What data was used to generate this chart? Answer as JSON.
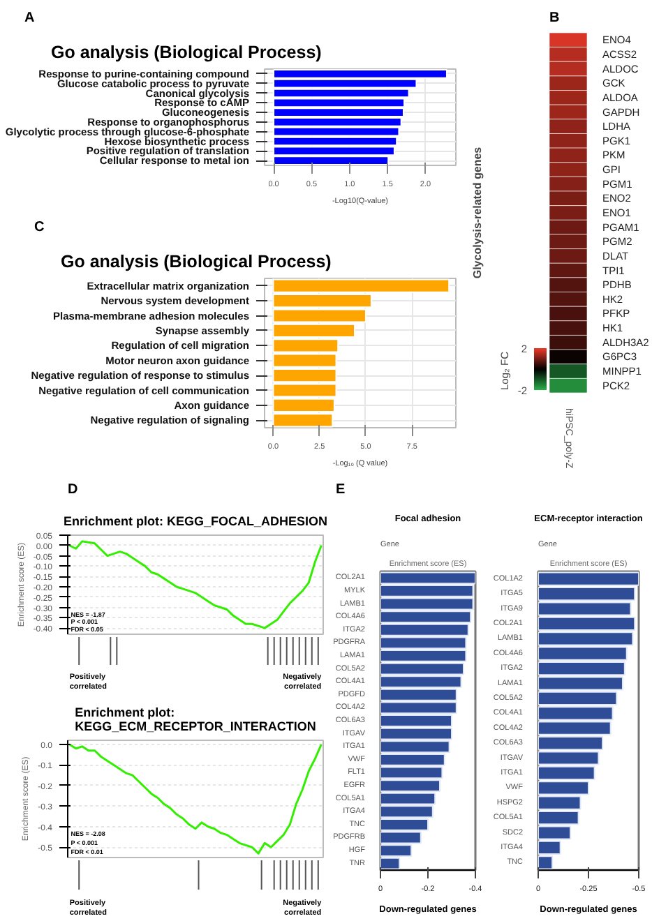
{
  "chart_data": [
    {
      "type": "bar",
      "orientation": "horizontal",
      "title": "Go analysis (Biological Process)",
      "xlabel": "-Log10(Q-value)",
      "annotations": [
        "A"
      ],
      "categories": [
        "Response to purine-containing compound",
        "Glucose catabolic process to pyruvate",
        "Canonical glycolysis",
        "Response to cAMP",
        "Gluconeogenesis",
        "Response to organophosphorus",
        "Glycolytic process through glucose-6-phosphate",
        "Hexose biosynthetic process",
        "Positive regulation of translation",
        "Cellular response to metal ion"
      ],
      "values": [
        2.28,
        1.88,
        1.78,
        1.72,
        1.71,
        1.68,
        1.65,
        1.62,
        1.59,
        1.51
      ],
      "color": "#0000ff",
      "xlim": [
        -0.12,
        2.4
      ],
      "xticks": [
        {
          "value": 0,
          "label": "0.0"
        },
        {
          "value": 0.5,
          "label": "0.5"
        },
        {
          "value": 1,
          "label": "1.0"
        },
        {
          "value": 1.5,
          "label": "1.5"
        },
        {
          "value": 2,
          "label": "2.0"
        }
      ],
      "grid": true
    },
    {
      "type": "heatmap",
      "ylabel": "Glycolysis-related genes",
      "clabel": "Log₂ FC",
      "annotations": [
        "B"
      ],
      "categories": [
        "hiPSC_poly-Z"
      ],
      "y_categories": [
        "ENO4",
        "ACSS2",
        "ALDOC",
        "GCK",
        "ALDOA",
        "GAPDH",
        "LDHA",
        "PGK1",
        "PKM",
        "GPI",
        "PGM1",
        "ENO2",
        "ENO1",
        "PGAM1",
        "PGM2",
        "DLAT",
        "TPI1",
        "PDHB",
        "HK2",
        "PFKP",
        "HK1",
        "ALDH3A2",
        "G6PC3",
        "MINPP1",
        "PCK2"
      ],
      "cells": [
        [
          1.8
        ],
        [
          1.5
        ],
        [
          1.5
        ],
        [
          1.3
        ],
        [
          1.3
        ],
        [
          1.3
        ],
        [
          1.2
        ],
        [
          1.2
        ],
        [
          1.2
        ],
        [
          1.2
        ],
        [
          1.1
        ],
        [
          1.0
        ],
        [
          1.0
        ],
        [
          0.9
        ],
        [
          0.9
        ],
        [
          0.9
        ],
        [
          0.8
        ],
        [
          0.7
        ],
        [
          0.7
        ],
        [
          0.6
        ],
        [
          0.6
        ],
        [
          0.5
        ],
        [
          0.1
        ],
        [
          -1.0
        ],
        [
          -1.6
        ]
      ],
      "clim": [
        -2,
        2
      ],
      "cticks": [
        -2,
        2
      ]
    },
    {
      "type": "bar",
      "orientation": "horizontal",
      "title": "Go analysis (Biological Process)",
      "xlabel": "-Log₁₀ (Q value)",
      "annotations": [
        "C"
      ],
      "categories": [
        "Extracellular matrix organization",
        "Nervous system development",
        "Plasma-membrane adhesion molecules",
        "Synapse assembly",
        "Regulation of cell migration",
        "Motor neuron axon guidance",
        "Negative regulation of response to stimulus",
        "Negative regulation of cell communication",
        "Axon guidance",
        "Negative regulation of signaling"
      ],
      "values": [
        9.5,
        5.3,
        5.0,
        4.4,
        3.5,
        3.4,
        3.4,
        3.4,
        3.3,
        3.2
      ],
      "color": "#ffa500",
      "xlim": [
        -0.47,
        9.87
      ],
      "xticks": [
        {
          "value": 0,
          "label": "0.0"
        },
        {
          "value": 2.5,
          "label": "2.5"
        },
        {
          "value": 5,
          "label": "5.0"
        },
        {
          "value": 7.5,
          "label": "7.5"
        }
      ],
      "grid": true
    },
    {
      "type": "line",
      "title": "Enrichment plot: KEGG_FOCAL_ADHESION",
      "ylabel": "Enrichment score (ES)",
      "annotations": [
        "D",
        "NES = -1.87",
        "P < 0.001",
        "FDR < 0.05",
        "Positively correlated",
        "Negatively correlated"
      ],
      "categories": [
        null,
        null,
        null,
        null,
        null,
        null,
        null,
        null,
        null,
        null,
        null,
        null,
        null,
        null,
        null,
        null,
        null,
        null,
        null,
        null,
        null,
        null,
        null,
        null,
        null,
        null,
        null,
        null,
        null,
        null,
        null,
        null,
        null,
        null,
        null,
        null,
        null,
        null,
        null,
        null,
        null
      ],
      "series": [
        {
          "color": "#33ee00",
          "values": [
            0.0,
            -0.015,
            0.02,
            0.015,
            0.01,
            -0.02,
            -0.05,
            -0.04,
            -0.03,
            -0.04,
            -0.06,
            -0.08,
            -0.1,
            -0.13,
            -0.14,
            -0.16,
            -0.18,
            -0.2,
            -0.21,
            -0.22,
            -0.23,
            -0.25,
            -0.27,
            -0.29,
            -0.3,
            -0.31,
            -0.34,
            -0.36,
            -0.38,
            -0.38,
            -0.39,
            -0.4,
            -0.38,
            -0.36,
            -0.32,
            -0.28,
            -0.25,
            -0.22,
            -0.18,
            -0.08,
            0.0
          ]
        }
      ],
      "ylim": [
        -0.43,
        0.05
      ],
      "yticks": [
        {
          "value": 0.05,
          "label": "0.05"
        },
        {
          "value": 0,
          "label": "0.00"
        },
        {
          "value": -0.05,
          "label": "-0.05"
        },
        {
          "value": -0.1,
          "label": "-0.10"
        },
        {
          "value": -0.15,
          "label": "-0.15"
        },
        {
          "value": -0.2,
          "label": "-0.20"
        },
        {
          "value": -0.25,
          "label": "-0.25"
        },
        {
          "value": -0.3,
          "label": "-0.30"
        },
        {
          "value": -0.35,
          "label": "-0.35"
        },
        {
          "value": -0.4,
          "label": "-0.40"
        }
      ],
      "grid": "y",
      "tick_labels": "y"
    },
    {
      "type": "line",
      "title": "Enrichment plot:\nKEGG_ECM_RECEPTOR_INTERACTION",
      "ylabel": "Enrichment score (ES)",
      "annotations": [
        "NES = -2.08",
        "P < 0.001",
        "FDR < 0.01",
        "Positively correlated",
        "Negatively correlated"
      ],
      "categories": [
        null,
        null,
        null,
        null,
        null,
        null,
        null,
        null,
        null,
        null,
        null,
        null,
        null,
        null,
        null,
        null,
        null,
        null,
        null,
        null,
        null,
        null,
        null,
        null,
        null,
        null,
        null,
        null,
        null,
        null,
        null,
        null,
        null,
        null,
        null,
        null,
        null,
        null,
        null,
        null,
        null
      ],
      "series": [
        {
          "color": "#33ee00",
          "values": [
            0.0,
            -0.02,
            -0.01,
            -0.03,
            -0.03,
            -0.06,
            -0.08,
            -0.1,
            -0.12,
            -0.14,
            -0.15,
            -0.18,
            -0.21,
            -0.24,
            -0.26,
            -0.29,
            -0.31,
            -0.34,
            -0.36,
            -0.39,
            -0.41,
            -0.38,
            -0.4,
            -0.41,
            -0.43,
            -0.44,
            -0.46,
            -0.48,
            -0.49,
            -0.5,
            -0.53,
            -0.48,
            -0.5,
            -0.47,
            -0.44,
            -0.39,
            -0.29,
            -0.22,
            -0.13,
            -0.07,
            0.0
          ]
        }
      ],
      "ylim": [
        -0.55,
        0.02
      ],
      "yticks": [
        {
          "value": 0,
          "label": "0.0"
        },
        -0.1,
        -0.2,
        -0.3,
        -0.4,
        -0.5
      ],
      "grid": "y",
      "tick_labels": "y"
    },
    {
      "type": "bar",
      "orientation": "horizontal",
      "title": "Focal adhesion",
      "ylabel": "Gene",
      "xlabel": "Enrichment score (ES)",
      "annotations": [
        "E",
        "Down-regulated genes"
      ],
      "categories": [
        "COL2A1",
        "MYLK",
        "LAMB1",
        "COL4A6",
        "ITGA2",
        "PDGFRA",
        "LAMA1",
        "COL5A2",
        "COL4A1",
        "PDGFD",
        "COL4A2",
        "COL6A3",
        "ITGAV",
        "ITGA1",
        "VWF",
        "FLT1",
        "EGFR",
        "COL5A1",
        "ITGA4",
        "TNC",
        "PDGFRB",
        "HGF",
        "TNR"
      ],
      "values": [
        -0.4,
        -0.39,
        -0.39,
        -0.38,
        -0.37,
        -0.36,
        -0.36,
        -0.35,
        -0.34,
        -0.32,
        -0.32,
        -0.3,
        -0.3,
        -0.29,
        -0.27,
        -0.26,
        -0.25,
        -0.23,
        -0.22,
        -0.2,
        -0.17,
        -0.13,
        -0.08
      ],
      "color": "#2e4d96",
      "xlim": [
        0,
        -0.4
      ],
      "xticks": [
        0,
        -0.2,
        -0.4
      ]
    },
    {
      "type": "bar",
      "orientation": "horizontal",
      "title": "ECM-receptor interaction",
      "ylabel": "Gene",
      "xlabel": "Enrichment score (ES)",
      "annotations": [
        "Down-regulated genes"
      ],
      "categories": [
        "COL1A2",
        "ITGA5",
        "ITGA9",
        "COL2A1",
        "LAMB1",
        "COL4A6",
        "ITGA2",
        "LAMA1",
        "COL5A2",
        "COL4A1",
        "COL4A2",
        "COL6A3",
        "ITGAV",
        "ITGA1",
        "VWF",
        "HSPG2",
        "COL5A1",
        "SDC2",
        "ITGA4",
        "TNC"
      ],
      "values": [
        -0.5,
        -0.48,
        -0.46,
        -0.48,
        -0.47,
        -0.44,
        -0.43,
        -0.42,
        -0.39,
        -0.37,
        -0.36,
        -0.32,
        -0.3,
        -0.28,
        -0.25,
        -0.21,
        -0.2,
        -0.16,
        -0.11,
        -0.07
      ],
      "color": "#2e4d96",
      "xlim": [
        0,
        -0.5
      ],
      "xticks": [
        0,
        -0.25,
        -0.5
      ]
    }
  ]
}
